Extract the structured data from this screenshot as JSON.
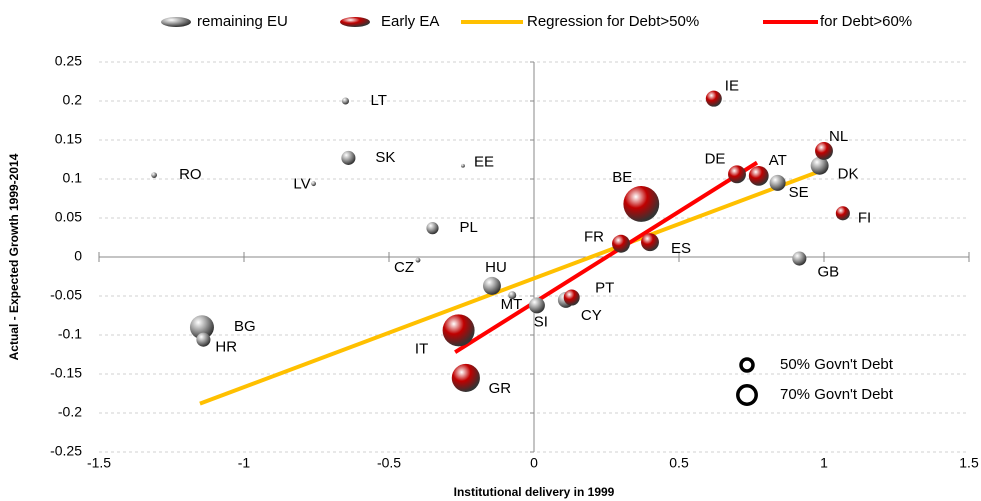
{
  "chart_data": {
    "type": "bubble",
    "xlabel": "Institutional delivery in 1999",
    "ylabel": "Actual - Expected Growth 1999-2014",
    "xlim": [
      -1.5,
      1.5
    ],
    "ylim": [
      -0.25,
      0.25
    ],
    "xticks": [
      -1.5,
      -1,
      -0.5,
      0,
      0.5,
      1,
      1.5
    ],
    "yticks": [
      -0.25,
      -0.2,
      -0.15,
      -0.1,
      -0.05,
      0,
      0.05,
      0.1,
      0.15,
      0.2,
      0.25
    ],
    "grid": true,
    "series": [
      {
        "name": "remaining EU",
        "color": "#a6a6a6",
        "labels": [
          "RO",
          "LT",
          "SK",
          "EE",
          "LV",
          "PL",
          "CZ",
          "HU",
          "MT",
          "SI",
          "CY",
          "BG",
          "HR",
          "GB",
          "SE",
          "DK"
        ],
        "x": [
          -1.31,
          -0.65,
          -0.64,
          -0.245,
          -0.76,
          -0.35,
          -0.4,
          -0.145,
          -0.075,
          0.01,
          0.11,
          -1.145,
          -1.14,
          0.915,
          0.84,
          0.985
        ],
        "y": [
          0.105,
          0.2,
          0.127,
          0.117,
          0.094,
          0.037,
          -0.004,
          -0.037,
          -0.049,
          -0.062,
          -0.055,
          -0.09,
          -0.106,
          -0.002,
          0.095,
          0.117
        ],
        "size": [
          18,
          22,
          44,
          12,
          15,
          38,
          15,
          56,
          25,
          50,
          50,
          75,
          44,
          44,
          50,
          56
        ]
      },
      {
        "name": "Early EA",
        "color": "#c00000",
        "labels": [
          "IE",
          "NL",
          "DE",
          "AT",
          "BE",
          "FI",
          "FR",
          "ES",
          "PT",
          "IT",
          "GR"
        ],
        "x": [
          0.62,
          1.0,
          0.7,
          0.775,
          0.37,
          1.065,
          0.3,
          0.4,
          0.13,
          -0.26,
          -0.235
        ],
        "y": [
          0.203,
          0.136,
          0.106,
          0.104,
          0.068,
          0.056,
          0.017,
          0.019,
          -0.052,
          -0.094,
          -0.155
        ],
        "size": [
          50,
          56,
          56,
          62,
          112,
          44,
          56,
          56,
          50,
          100,
          88
        ]
      }
    ],
    "lines": [
      {
        "name": "Regression for Debt>50%",
        "color": "#ffc000",
        "x": [
          -1.152,
          1.0
        ],
        "y": [
          -0.188,
          0.112
        ]
      },
      {
        "name": "for Debt>60%",
        "color": "#ff0000",
        "x": [
          -0.272,
          0.769
        ],
        "y": [
          -0.122,
          0.121
        ]
      }
    ],
    "size_legend": [
      {
        "value": 50,
        "label": "50% Govn't Debt"
      },
      {
        "value": 70,
        "label": "70% Govn't Debt"
      }
    ]
  }
}
